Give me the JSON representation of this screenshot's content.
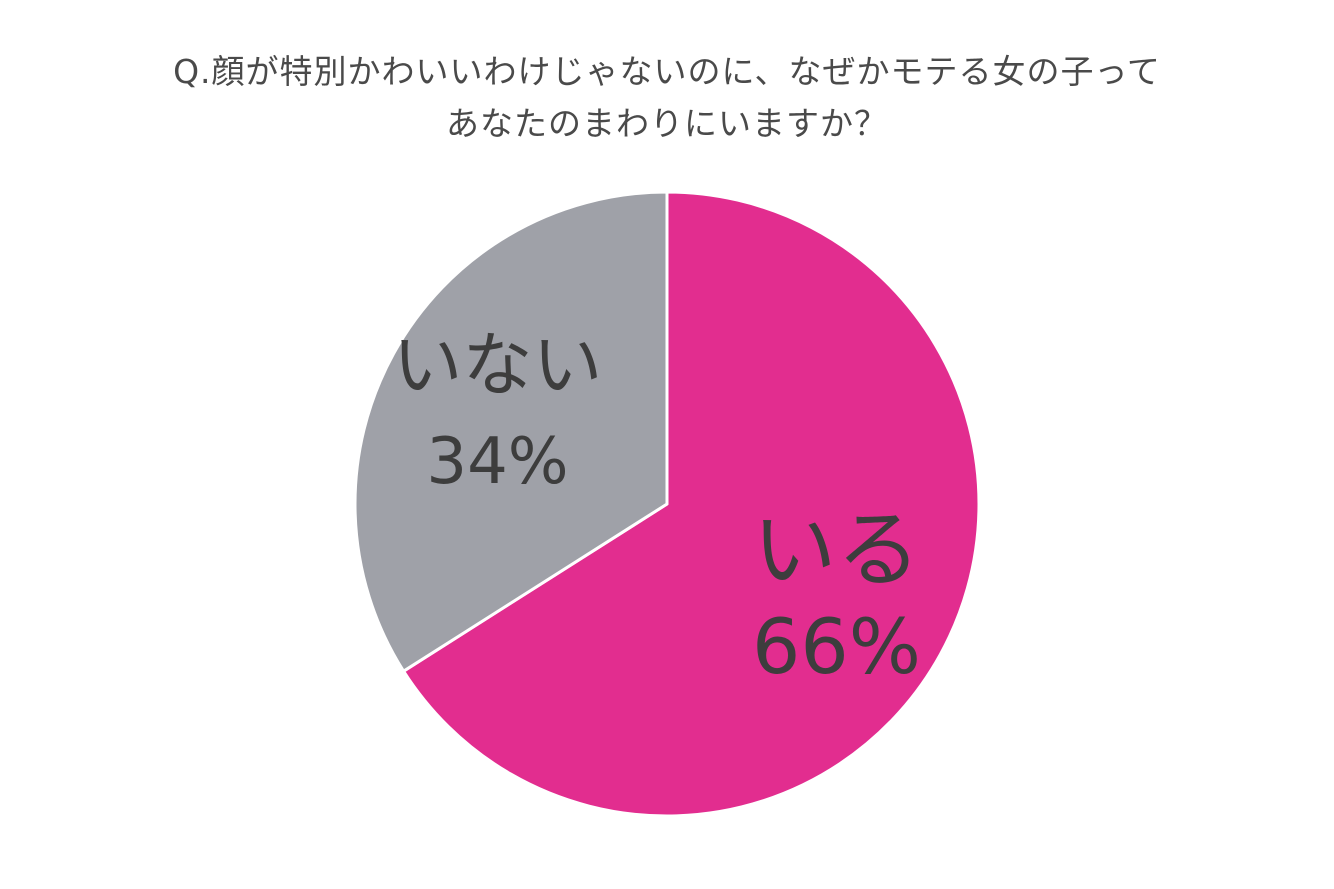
{
  "chart_data": {
    "type": "pie",
    "title_lines": [
      "Q.顔が特別かわいいわけじゃないのに、なぜかモテる女の子って",
      "あなたのまわりにいますか？"
    ],
    "categories": [
      "いる",
      "いない"
    ],
    "values": [
      66,
      34
    ],
    "value_labels": [
      "66%",
      "34%"
    ],
    "colors": [
      "#e22d8f",
      "#9fa1a8"
    ],
    "start_angle_deg": 0,
    "direction": "clockwise",
    "legend": "none",
    "data_labels": "inside"
  }
}
